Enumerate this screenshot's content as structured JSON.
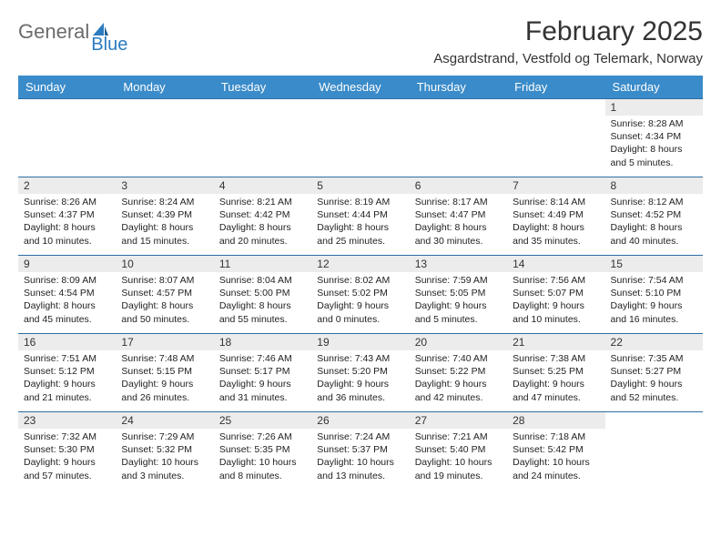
{
  "logo": {
    "part1": "General",
    "part2": "Blue"
  },
  "title": "February 2025",
  "location": "Asgardstrand, Vestfold og Telemark, Norway",
  "colors": {
    "header_bg": "#3a8bc9",
    "header_text": "#ffffff",
    "daynum_bg": "#ececec",
    "border": "#2d6fa3",
    "logo_gray": "#6b6b6b",
    "logo_blue": "#2b7bbf"
  },
  "day_headers": [
    "Sunday",
    "Monday",
    "Tuesday",
    "Wednesday",
    "Thursday",
    "Friday",
    "Saturday"
  ],
  "weeks": [
    [
      null,
      null,
      null,
      null,
      null,
      null,
      {
        "n": "1",
        "sunrise": "8:28 AM",
        "sunset": "4:34 PM",
        "daylight": "8 hours and 5 minutes."
      }
    ],
    [
      {
        "n": "2",
        "sunrise": "8:26 AM",
        "sunset": "4:37 PM",
        "daylight": "8 hours and 10 minutes."
      },
      {
        "n": "3",
        "sunrise": "8:24 AM",
        "sunset": "4:39 PM",
        "daylight": "8 hours and 15 minutes."
      },
      {
        "n": "4",
        "sunrise": "8:21 AM",
        "sunset": "4:42 PM",
        "daylight": "8 hours and 20 minutes."
      },
      {
        "n": "5",
        "sunrise": "8:19 AM",
        "sunset": "4:44 PM",
        "daylight": "8 hours and 25 minutes."
      },
      {
        "n": "6",
        "sunrise": "8:17 AM",
        "sunset": "4:47 PM",
        "daylight": "8 hours and 30 minutes."
      },
      {
        "n": "7",
        "sunrise": "8:14 AM",
        "sunset": "4:49 PM",
        "daylight": "8 hours and 35 minutes."
      },
      {
        "n": "8",
        "sunrise": "8:12 AM",
        "sunset": "4:52 PM",
        "daylight": "8 hours and 40 minutes."
      }
    ],
    [
      {
        "n": "9",
        "sunrise": "8:09 AM",
        "sunset": "4:54 PM",
        "daylight": "8 hours and 45 minutes."
      },
      {
        "n": "10",
        "sunrise": "8:07 AM",
        "sunset": "4:57 PM",
        "daylight": "8 hours and 50 minutes."
      },
      {
        "n": "11",
        "sunrise": "8:04 AM",
        "sunset": "5:00 PM",
        "daylight": "8 hours and 55 minutes."
      },
      {
        "n": "12",
        "sunrise": "8:02 AM",
        "sunset": "5:02 PM",
        "daylight": "9 hours and 0 minutes."
      },
      {
        "n": "13",
        "sunrise": "7:59 AM",
        "sunset": "5:05 PM",
        "daylight": "9 hours and 5 minutes."
      },
      {
        "n": "14",
        "sunrise": "7:56 AM",
        "sunset": "5:07 PM",
        "daylight": "9 hours and 10 minutes."
      },
      {
        "n": "15",
        "sunrise": "7:54 AM",
        "sunset": "5:10 PM",
        "daylight": "9 hours and 16 minutes."
      }
    ],
    [
      {
        "n": "16",
        "sunrise": "7:51 AM",
        "sunset": "5:12 PM",
        "daylight": "9 hours and 21 minutes."
      },
      {
        "n": "17",
        "sunrise": "7:48 AM",
        "sunset": "5:15 PM",
        "daylight": "9 hours and 26 minutes."
      },
      {
        "n": "18",
        "sunrise": "7:46 AM",
        "sunset": "5:17 PM",
        "daylight": "9 hours and 31 minutes."
      },
      {
        "n": "19",
        "sunrise": "7:43 AM",
        "sunset": "5:20 PM",
        "daylight": "9 hours and 36 minutes."
      },
      {
        "n": "20",
        "sunrise": "7:40 AM",
        "sunset": "5:22 PM",
        "daylight": "9 hours and 42 minutes."
      },
      {
        "n": "21",
        "sunrise": "7:38 AM",
        "sunset": "5:25 PM",
        "daylight": "9 hours and 47 minutes."
      },
      {
        "n": "22",
        "sunrise": "7:35 AM",
        "sunset": "5:27 PM",
        "daylight": "9 hours and 52 minutes."
      }
    ],
    [
      {
        "n": "23",
        "sunrise": "7:32 AM",
        "sunset": "5:30 PM",
        "daylight": "9 hours and 57 minutes."
      },
      {
        "n": "24",
        "sunrise": "7:29 AM",
        "sunset": "5:32 PM",
        "daylight": "10 hours and 3 minutes."
      },
      {
        "n": "25",
        "sunrise": "7:26 AM",
        "sunset": "5:35 PM",
        "daylight": "10 hours and 8 minutes."
      },
      {
        "n": "26",
        "sunrise": "7:24 AM",
        "sunset": "5:37 PM",
        "daylight": "10 hours and 13 minutes."
      },
      {
        "n": "27",
        "sunrise": "7:21 AM",
        "sunset": "5:40 PM",
        "daylight": "10 hours and 19 minutes."
      },
      {
        "n": "28",
        "sunrise": "7:18 AM",
        "sunset": "5:42 PM",
        "daylight": "10 hours and 24 minutes."
      },
      null
    ]
  ],
  "labels": {
    "sunrise": "Sunrise:",
    "sunset": "Sunset:",
    "daylight": "Daylight:"
  }
}
